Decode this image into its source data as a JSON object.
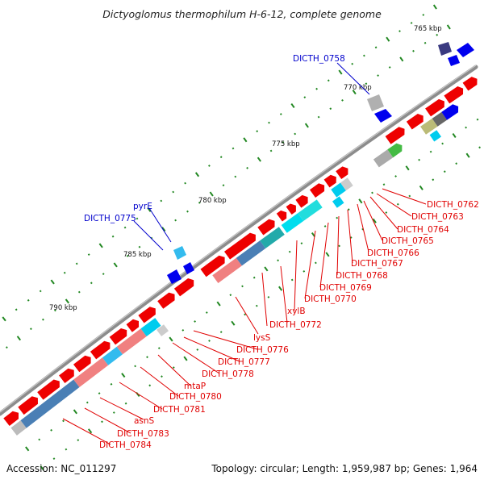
{
  "title": "Dictyoglomus thermophilum H-6-12, complete genome",
  "footer": {
    "accession": "Accession: NC_011297",
    "summary": "Topology: circular; Length: 1,959,987 bp; Genes: 1,964"
  },
  "colors": {
    "backbone": "#8c8c8c",
    "forward_cds": "#ee0000",
    "reverse_cds": "#0000ee",
    "tick": "#228822",
    "label_red": "#e00000",
    "label_blue": "#0000cc"
  },
  "scale": {
    "labels": [
      "765 kbp",
      "770 kbp",
      "775 kbp",
      "780 kbp",
      "785 kbp",
      "790 kbp"
    ]
  },
  "gene_labels": [
    {
      "text": "DICTH_0758",
      "color": "blue"
    },
    {
      "text": "DICTH_0762",
      "color": "red"
    },
    {
      "text": "DICTH_0763",
      "color": "red"
    },
    {
      "text": "DICTH_0764",
      "color": "red"
    },
    {
      "text": "DICTH_0765",
      "color": "red"
    },
    {
      "text": "DICTH_0766",
      "color": "red"
    },
    {
      "text": "DICTH_0767",
      "color": "red"
    },
    {
      "text": "DICTH_0768",
      "color": "red"
    },
    {
      "text": "DICTH_0769",
      "color": "red"
    },
    {
      "text": "DICTH_0770",
      "color": "red"
    },
    {
      "text": "xylB",
      "color": "red"
    },
    {
      "text": "DICTH_0772",
      "color": "red"
    },
    {
      "text": "lysS",
      "color": "red"
    },
    {
      "text": "DICTH_0776",
      "color": "red"
    },
    {
      "text": "DICTH_0777",
      "color": "red"
    },
    {
      "text": "DICTH_0778",
      "color": "red"
    },
    {
      "text": "mtaP",
      "color": "red"
    },
    {
      "text": "DICTH_0780",
      "color": "red"
    },
    {
      "text": "DICTH_0781",
      "color": "red"
    },
    {
      "text": "asnS",
      "color": "red"
    },
    {
      "text": "DICTH_0783",
      "color": "red"
    },
    {
      "text": "DICTH_0784",
      "color": "red"
    },
    {
      "text": "pyrE",
      "color": "blue"
    },
    {
      "text": "DICTH_0775",
      "color": "blue"
    }
  ]
}
